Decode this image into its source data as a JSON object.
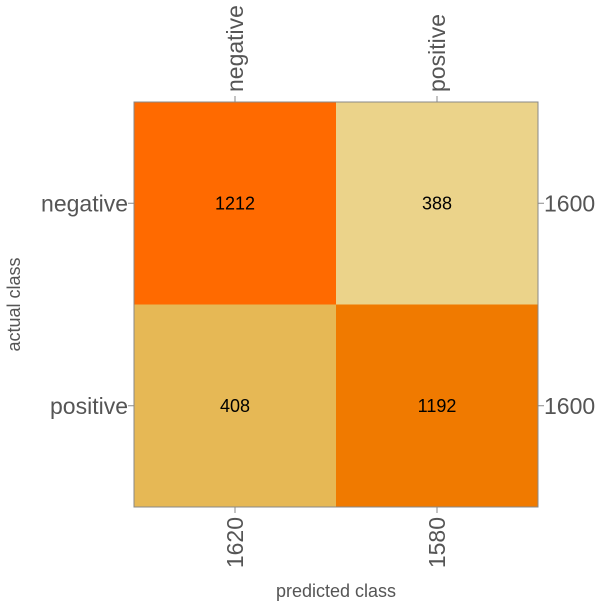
{
  "chart_data": {
    "type": "heatmap",
    "title": "",
    "xlabel": "predicted class",
    "ylabel": "actual class",
    "x_categories": [
      "negative",
      "positive"
    ],
    "y_categories": [
      "negative",
      "positive"
    ],
    "values": [
      [
        1212,
        388
      ],
      [
        408,
        1192
      ]
    ],
    "cell_colors": [
      [
        "#ff6a00",
        "#ebd38a"
      ],
      [
        "#e6b855",
        "#f07a00"
      ]
    ],
    "column_totals": [
      "1620",
      "1580"
    ],
    "row_totals": [
      "1600",
      "1600"
    ],
    "grid": false,
    "legend": "none"
  }
}
